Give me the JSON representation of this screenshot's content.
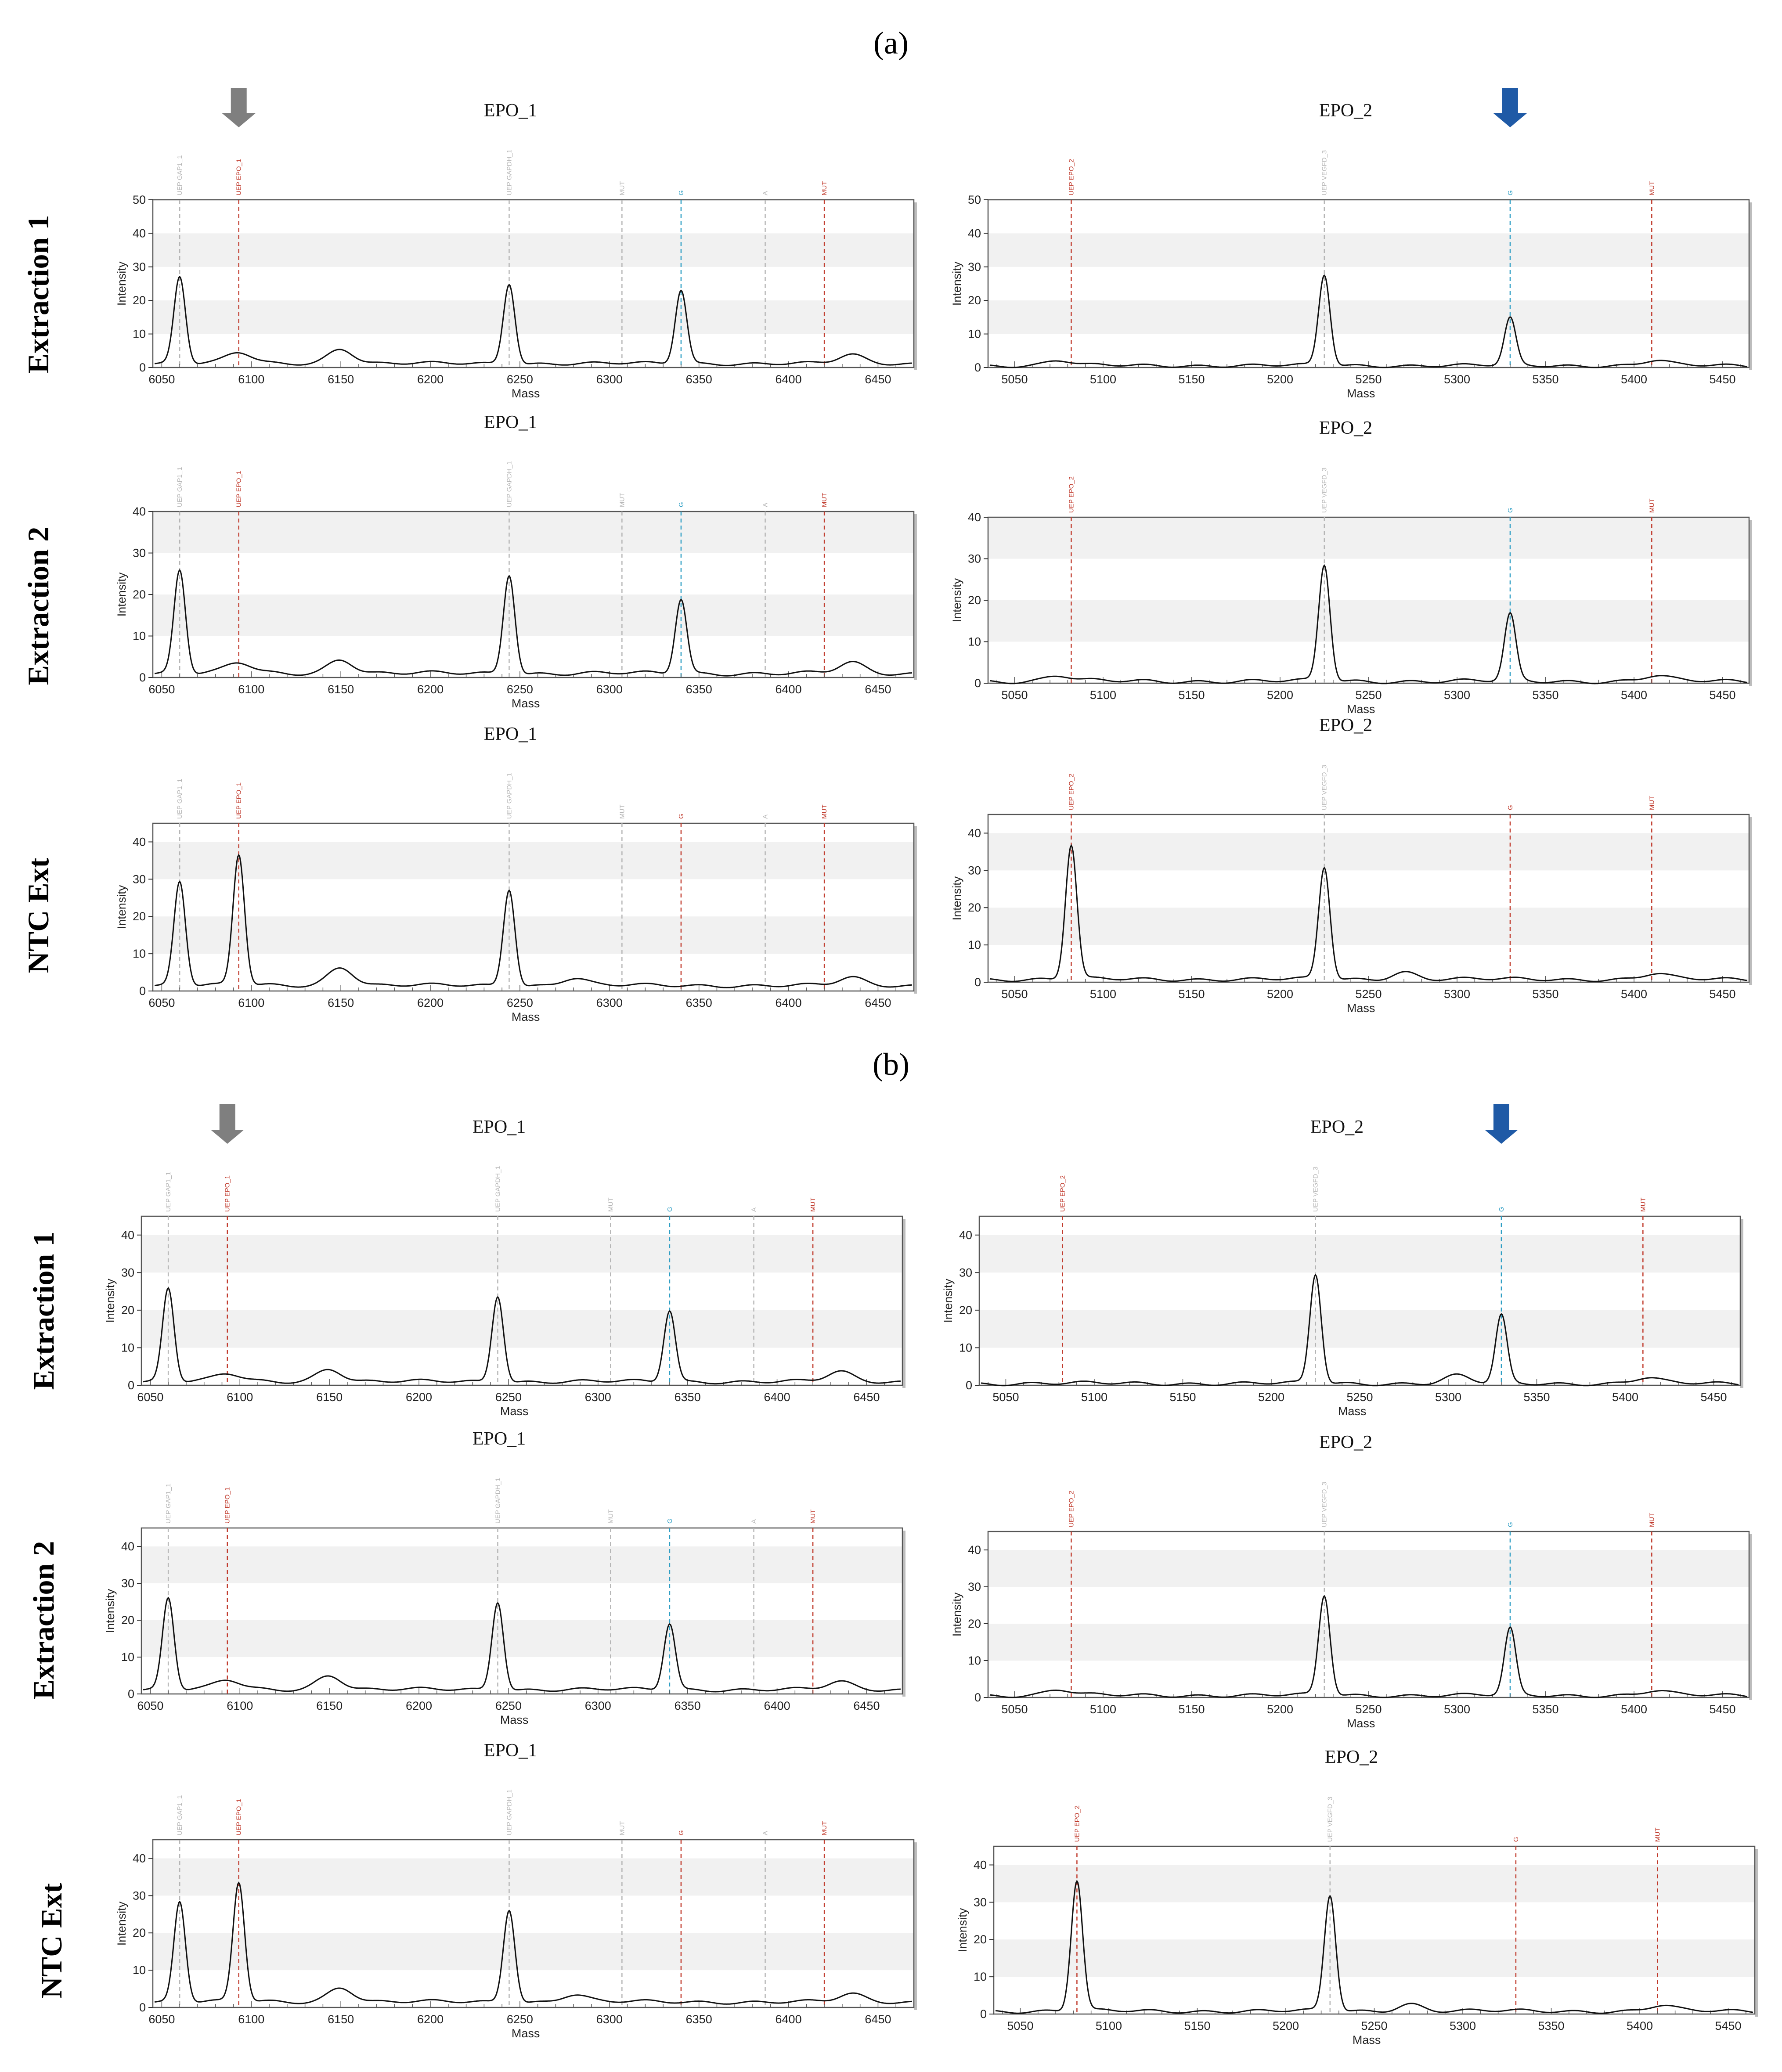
{
  "panels": [
    {
      "label": "(a)"
    },
    {
      "label": "(b)"
    }
  ],
  "row_labels": [
    "Extraction 1",
    "Extraction 2",
    "NTC Ext"
  ],
  "colors": {
    "trace": "#111111",
    "marker_red": "#c0392b",
    "marker_blue": "#2e9ec4",
    "marker_gray": "#b5b5b5",
    "arrow_gray": "#7f7f7f",
    "arrow_blue": "#1f5aa6"
  },
  "assays": {
    "EPO_1": {
      "title": "EPO_1",
      "xlim": [
        6045,
        6470
      ],
      "xticks": [
        6050,
        6100,
        6150,
        6200,
        6250,
        6300,
        6350,
        6400,
        6450
      ],
      "markers": [
        {
          "x": 6060,
          "label": "UEP GAP1_1",
          "kind": "gray"
        },
        {
          "x": 6093,
          "label": "UEP EPO_1",
          "kind": "red"
        },
        {
          "x": 6244,
          "label": "UEP GAPDH_1",
          "kind": "gray"
        },
        {
          "x": 6307,
          "label": "MUT",
          "kind": "gray"
        },
        {
          "x": 6340,
          "label": "G",
          "kind": "call"
        },
        {
          "x": 6387,
          "label": "A",
          "kind": "gray"
        },
        {
          "x": 6420,
          "label": "MUT",
          "kind": "red"
        }
      ]
    },
    "EPO_2": {
      "title": "EPO_2",
      "xlim": [
        5035,
        5465
      ],
      "xticks": [
        5050,
        5100,
        5150,
        5200,
        5250,
        5300,
        5350,
        5400,
        5450
      ],
      "markers": [
        {
          "x": 5082,
          "label": "UEP EPO_2",
          "kind": "red"
        },
        {
          "x": 5225,
          "label": "UEP VEGFD_3",
          "kind": "gray"
        },
        {
          "x": 5330,
          "label": "G",
          "kind": "call"
        },
        {
          "x": 5410,
          "label": "MUT",
          "kind": "red"
        }
      ]
    }
  },
  "axis_labels": {
    "x": "Mass",
    "y": "Intensity"
  },
  "chart_data": [
    {
      "type": "line",
      "panel": "(a)",
      "row": "Extraction 1",
      "title": "EPO_1",
      "xlabel": "Mass",
      "ylabel": "Intensity",
      "ylim": [
        0,
        50
      ],
      "yticks": [
        0,
        10,
        20,
        30,
        40,
        50
      ],
      "baseline": 1.2,
      "arrow": {
        "x": 6093,
        "color": "gray"
      },
      "call": "G",
      "call_color": "blue",
      "peaks": [
        {
          "x": 6060,
          "y": 26
        },
        {
          "x": 6093,
          "y": 3.2
        },
        {
          "x": 6150,
          "y": 4.5
        },
        {
          "x": 6244,
          "y": 24
        },
        {
          "x": 6340,
          "y": 22
        },
        {
          "x": 6435,
          "y": 2.5
        }
      ]
    },
    {
      "type": "line",
      "panel": "(a)",
      "row": "Extraction 1",
      "title": "EPO_2",
      "xlabel": "Mass",
      "ylabel": "Intensity",
      "ylim": [
        0,
        50
      ],
      "yticks": [
        0,
        10,
        20,
        30,
        40,
        50
      ],
      "baseline": 0.6,
      "arrow": {
        "x": 5330,
        "color": "blue"
      },
      "call": "G",
      "call_color": "blue",
      "peaks": [
        {
          "x": 5225,
          "y": 27
        },
        {
          "x": 5330,
          "y": 14
        },
        {
          "x": 5075,
          "y": 1.5
        },
        {
          "x": 5412,
          "y": 1.5
        }
      ]
    },
    {
      "type": "line",
      "panel": "(a)",
      "row": "Extraction 2",
      "title": "EPO_1",
      "xlabel": "Mass",
      "ylabel": "Intensity",
      "ylim": [
        0,
        40
      ],
      "yticks": [
        0,
        10,
        20,
        30,
        40
      ],
      "baseline": 1.0,
      "call": "G",
      "call_color": "blue",
      "peaks": [
        {
          "x": 6060,
          "y": 25
        },
        {
          "x": 6093,
          "y": 2.5
        },
        {
          "x": 6150,
          "y": 3.5
        },
        {
          "x": 6244,
          "y": 24
        },
        {
          "x": 6340,
          "y": 18
        },
        {
          "x": 6435,
          "y": 2.5
        }
      ]
    },
    {
      "type": "line",
      "panel": "(a)",
      "row": "Extraction 2",
      "title": "EPO_2",
      "xlabel": "Mass",
      "ylabel": "Intensity",
      "ylim": [
        0,
        40
      ],
      "yticks": [
        0,
        10,
        20,
        30,
        40
      ],
      "baseline": 0.5,
      "call": "G",
      "call_color": "blue",
      "peaks": [
        {
          "x": 5225,
          "y": 28
        },
        {
          "x": 5330,
          "y": 16
        },
        {
          "x": 5075,
          "y": 1.3
        },
        {
          "x": 5412,
          "y": 1.3
        }
      ]
    },
    {
      "type": "line",
      "panel": "(a)",
      "row": "NTC Ext",
      "title": "EPO_1",
      "xlabel": "Mass",
      "ylabel": "Intensity",
      "ylim": [
        0,
        45
      ],
      "yticks": [
        0,
        10,
        20,
        30,
        40
      ],
      "baseline": 1.5,
      "call": "G",
      "call_color": "red",
      "peaks": [
        {
          "x": 6060,
          "y": 28
        },
        {
          "x": 6093,
          "y": 35
        },
        {
          "x": 6150,
          "y": 5
        },
        {
          "x": 6244,
          "y": 26
        },
        {
          "x": 6280,
          "y": 2
        },
        {
          "x": 6435,
          "y": 2
        }
      ]
    },
    {
      "type": "line",
      "panel": "(a)",
      "row": "NTC Ext",
      "title": "EPO_2",
      "xlabel": "Mass",
      "ylabel": "Intensity",
      "ylim": [
        0,
        45
      ],
      "yticks": [
        0,
        10,
        20,
        30,
        40
      ],
      "baseline": 0.8,
      "call": "G",
      "call_color": "red",
      "peaks": [
        {
          "x": 5082,
          "y": 36
        },
        {
          "x": 5225,
          "y": 30
        },
        {
          "x": 5270,
          "y": 2
        },
        {
          "x": 5412,
          "y": 1.5
        }
      ]
    },
    {
      "type": "line",
      "panel": "(b)",
      "row": "Extraction 1",
      "title": "EPO_1",
      "xlabel": "Mass",
      "ylabel": "Intensity",
      "ylim": [
        0,
        45
      ],
      "yticks": [
        0,
        10,
        20,
        30,
        40
      ],
      "baseline": 1.0,
      "arrow": {
        "x": 6093,
        "color": "gray"
      },
      "call": "G",
      "call_color": "blue",
      "peaks": [
        {
          "x": 6060,
          "y": 25
        },
        {
          "x": 6093,
          "y": 2
        },
        {
          "x": 6150,
          "y": 3.5
        },
        {
          "x": 6244,
          "y": 23
        },
        {
          "x": 6340,
          "y": 19
        },
        {
          "x": 6435,
          "y": 2.5
        }
      ]
    },
    {
      "type": "line",
      "panel": "(b)",
      "row": "Extraction 1",
      "title": "EPO_2",
      "xlabel": "Mass",
      "ylabel": "Intensity",
      "ylim": [
        0,
        45
      ],
      "yticks": [
        0,
        10,
        20,
        30,
        40
      ],
      "baseline": 0.5,
      "arrow": {
        "x": 5330,
        "color": "blue"
      },
      "call": "G",
      "call_color": "blue",
      "peaks": [
        {
          "x": 5225,
          "y": 29
        },
        {
          "x": 5330,
          "y": 18
        },
        {
          "x": 5305,
          "y": 2
        },
        {
          "x": 5412,
          "y": 1.5
        }
      ]
    },
    {
      "type": "line",
      "panel": "(b)",
      "row": "Extraction 2",
      "title": "EPO_1",
      "xlabel": "Mass",
      "ylabel": "Intensity",
      "ylim": [
        0,
        45
      ],
      "yticks": [
        0,
        10,
        20,
        30,
        40
      ],
      "baseline": 1.2,
      "call": "G",
      "call_color": "blue",
      "peaks": [
        {
          "x": 6060,
          "y": 25
        },
        {
          "x": 6093,
          "y": 2.5
        },
        {
          "x": 6150,
          "y": 4
        },
        {
          "x": 6244,
          "y": 24
        },
        {
          "x": 6340,
          "y": 18
        },
        {
          "x": 6435,
          "y": 2
        }
      ]
    },
    {
      "type": "line",
      "panel": "(b)",
      "row": "Extraction 2",
      "title": "EPO_2",
      "xlabel": "Mass",
      "ylabel": "Intensity",
      "ylim": [
        0,
        45
      ],
      "yticks": [
        0,
        10,
        20,
        30,
        40
      ],
      "baseline": 0.6,
      "call": "G",
      "call_color": "blue",
      "peaks": [
        {
          "x": 5225,
          "y": 27
        },
        {
          "x": 5330,
          "y": 18
        },
        {
          "x": 5075,
          "y": 1.5
        },
        {
          "x": 5412,
          "y": 1.2
        }
      ]
    },
    {
      "type": "line",
      "panel": "(b)",
      "row": "NTC Ext",
      "title": "EPO_1",
      "xlabel": "Mass",
      "ylabel": "Intensity",
      "ylim": [
        0,
        45
      ],
      "yticks": [
        0,
        10,
        20,
        30,
        40
      ],
      "baseline": 1.5,
      "call": "G",
      "call_color": "red",
      "peaks": [
        {
          "x": 6060,
          "y": 27
        },
        {
          "x": 6093,
          "y": 32
        },
        {
          "x": 6150,
          "y": 4
        },
        {
          "x": 6244,
          "y": 25
        },
        {
          "x": 6280,
          "y": 2
        },
        {
          "x": 6435,
          "y": 2
        }
      ]
    },
    {
      "type": "line",
      "panel": "(b)",
      "row": "NTC Ext",
      "title": "EPO_2",
      "xlabel": "Mass",
      "ylabel": "Intensity",
      "ylim": [
        0,
        45
      ],
      "yticks": [
        0,
        10,
        20,
        30,
        40
      ],
      "baseline": 0.8,
      "call": "G",
      "call_color": "red",
      "peaks": [
        {
          "x": 5082,
          "y": 35
        },
        {
          "x": 5225,
          "y": 31
        },
        {
          "x": 5270,
          "y": 2
        },
        {
          "x": 5412,
          "y": 1.5
        }
      ]
    }
  ]
}
